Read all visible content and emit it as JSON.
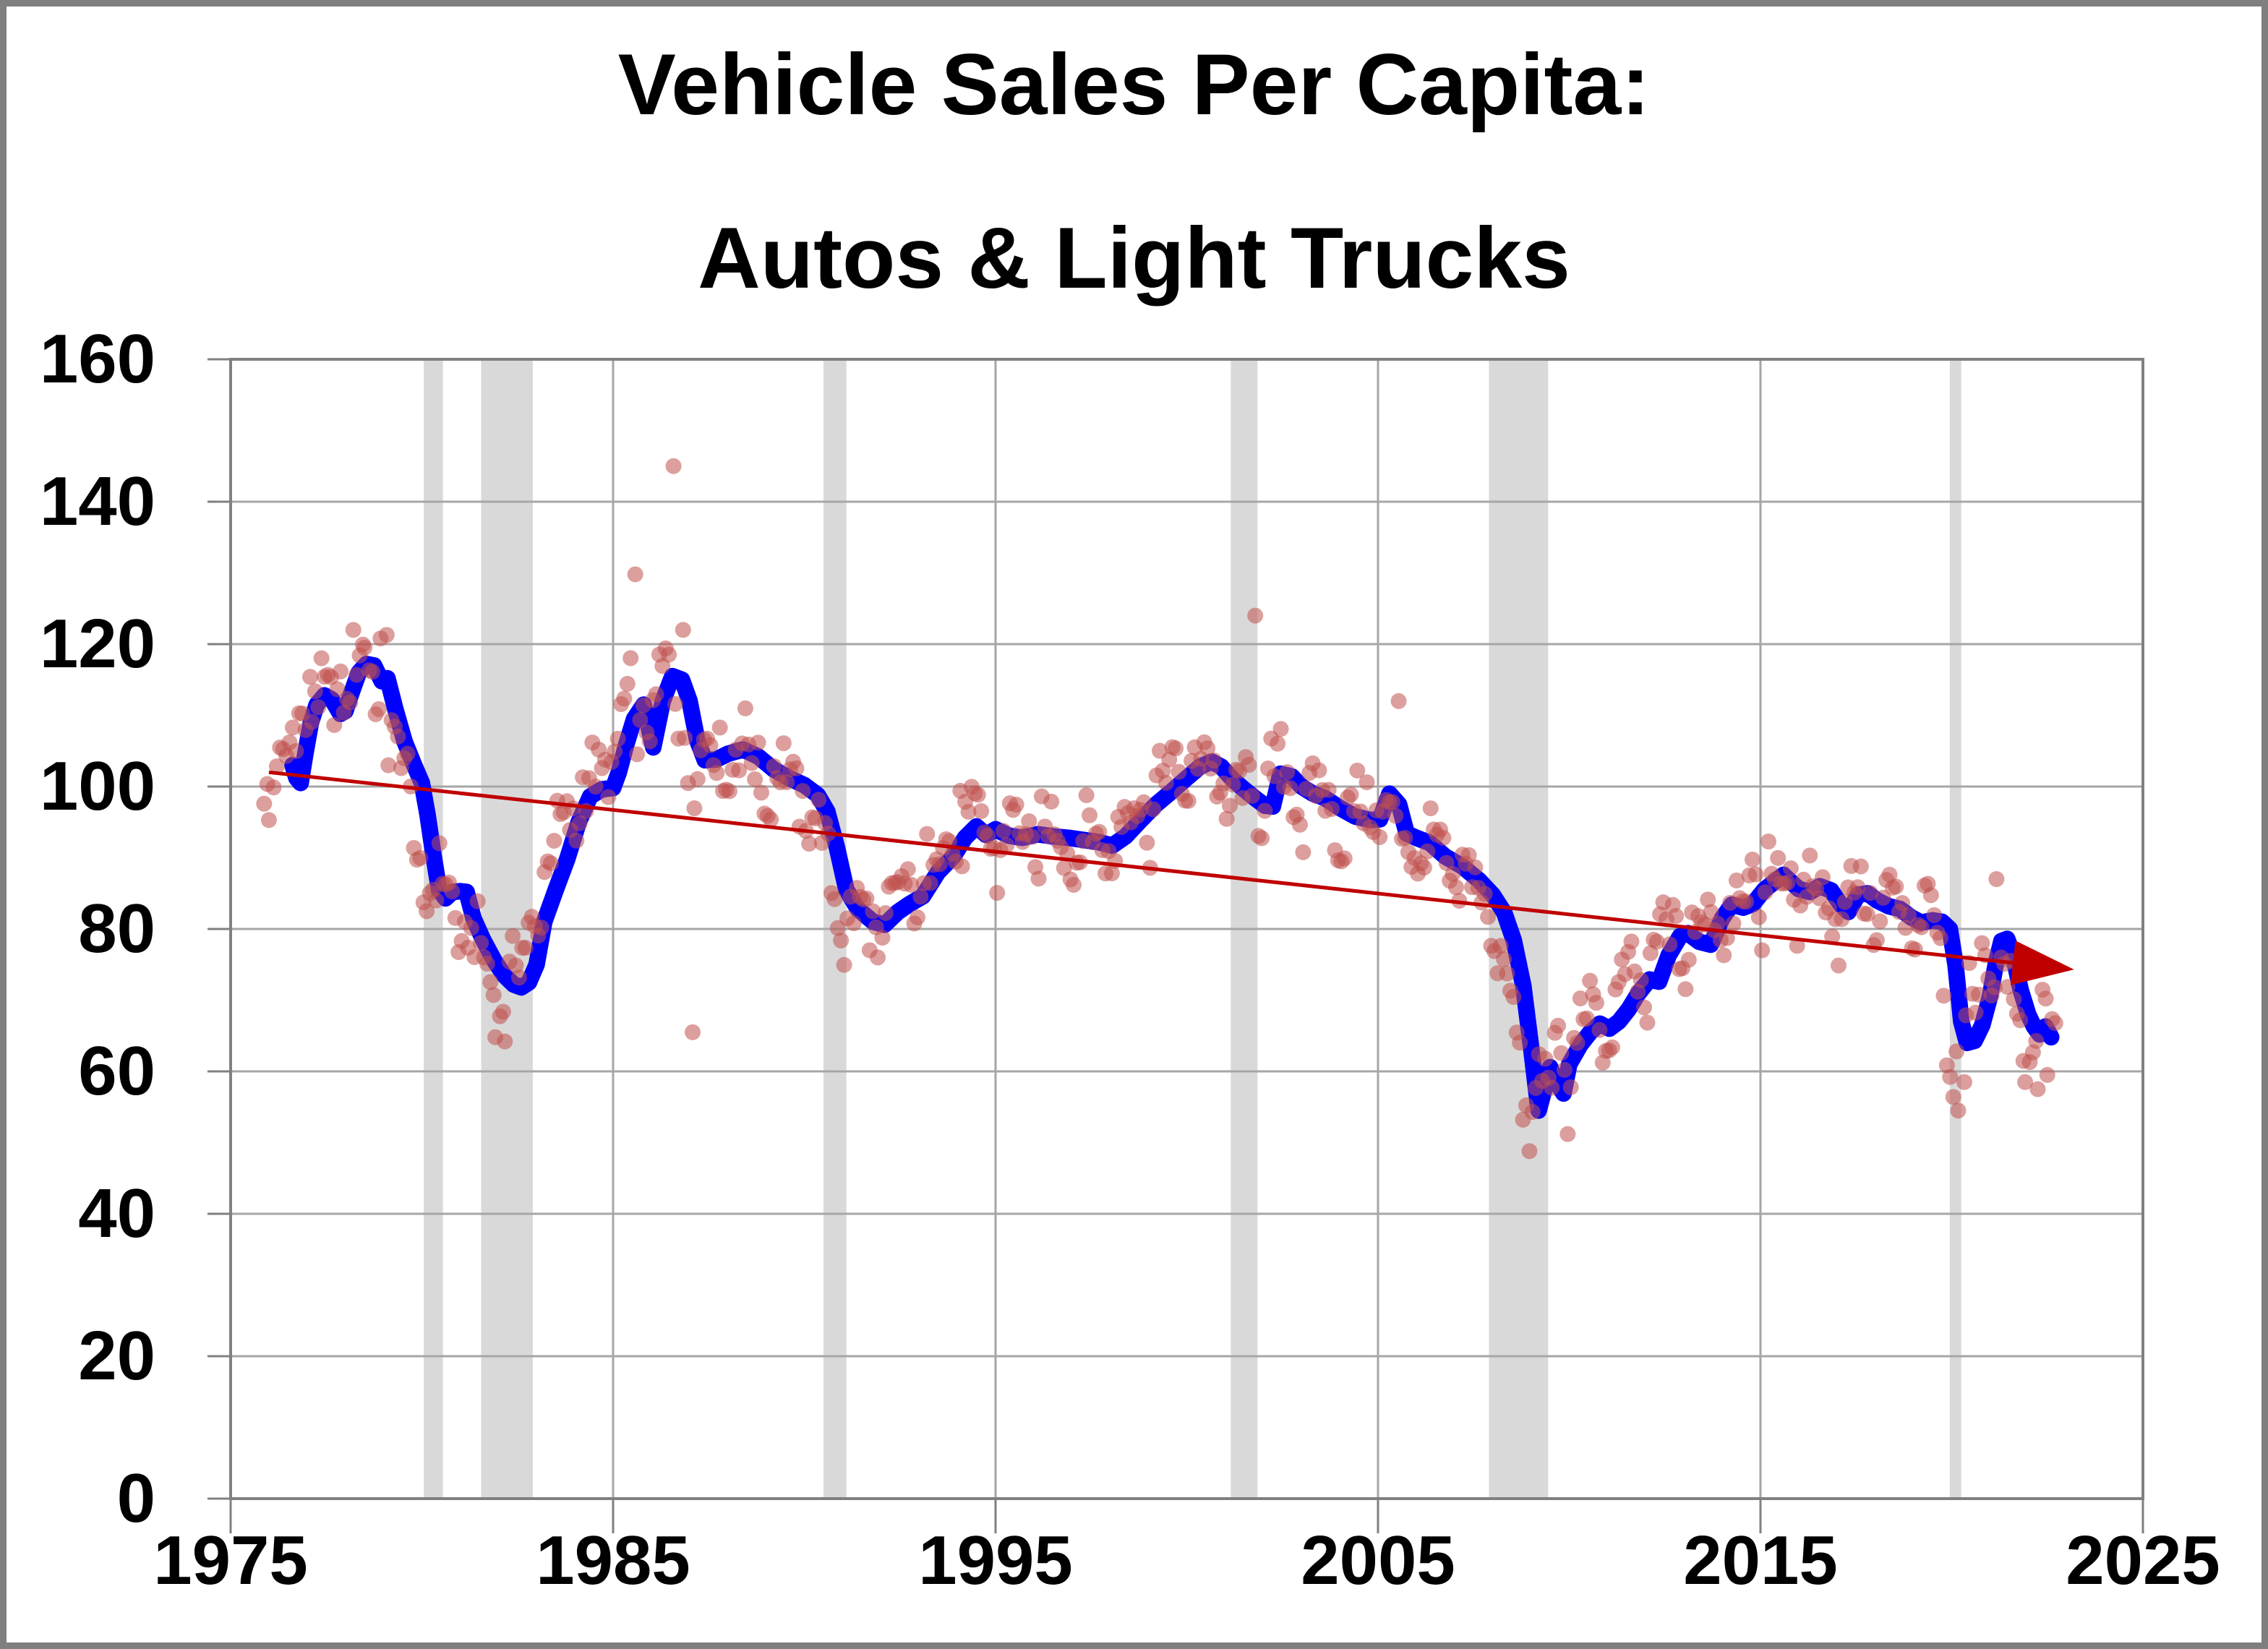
{
  "title": {
    "line1": "Vehicle Sales Per Capita:",
    "line2": "Autos & Light Trucks"
  },
  "chart_data": {
    "type": "scatter",
    "title": "Vehicle Sales Per Capita: Autos & Light Trucks",
    "xlabel": "",
    "ylabel": "",
    "grid": true,
    "legend": "none",
    "x_axis": {
      "min": 1975,
      "max": 2025,
      "tick_values": [
        1975,
        1985,
        1995,
        2005,
        2015,
        2025
      ],
      "tick_labels": [
        "1975",
        "1985",
        "1995",
        "2005",
        "2015",
        "2025"
      ]
    },
    "y_axis": {
      "min": 0,
      "max": 160,
      "tick_interval": 20,
      "tick_values": [
        0,
        20,
        40,
        60,
        80,
        100,
        120,
        140,
        160
      ],
      "tick_labels": [
        "0",
        "20",
        "40",
        "60",
        "80",
        "100",
        "120",
        "140",
        "160"
      ]
    },
    "colors": {
      "smoothed_line": "#0000ff",
      "monthly_scatter": "#c0504d",
      "trend_line": "#c00000",
      "recession_band": "#d9d9d9",
      "gridline": "#a6a6a6",
      "frame": "#808080",
      "text": "#000000",
      "page_border": "#7f7f7f"
    },
    "recession_bands": [
      [
        1980.05,
        1980.55
      ],
      [
        1981.55,
        1982.9
      ],
      [
        1990.5,
        1991.1
      ],
      [
        2001.15,
        2001.85
      ],
      [
        2007.9,
        2009.45
      ],
      [
        2019.95,
        2020.25
      ]
    ],
    "trend_line": {
      "start": [
        1976.0,
        102.0
      ],
      "end": [
        2023.2,
        74.3
      ],
      "arrow_at_end": true
    },
    "smoothed_line": {
      "points": [
        [
          1976.62,
          103
        ],
        [
          1976.72,
          101.2
        ],
        [
          1976.83,
          100.5
        ],
        [
          1976.95,
          104.5
        ],
        [
          1977.1,
          109
        ],
        [
          1977.25,
          111.5
        ],
        [
          1977.45,
          112.8
        ],
        [
          1977.65,
          112.2
        ],
        [
          1977.87,
          110.2
        ],
        [
          1978.0,
          110.6
        ],
        [
          1978.15,
          113
        ],
        [
          1978.35,
          116
        ],
        [
          1978.55,
          117.2
        ],
        [
          1978.75,
          117
        ],
        [
          1978.95,
          114.8
        ],
        [
          1979.1,
          115.2
        ],
        [
          1979.3,
          111
        ],
        [
          1979.55,
          106.3
        ],
        [
          1979.8,
          103
        ],
        [
          1980.0,
          100.5
        ],
        [
          1980.15,
          96
        ],
        [
          1980.3,
          90.5
        ],
        [
          1980.45,
          85.5
        ],
        [
          1980.62,
          84.3
        ],
        [
          1980.8,
          85.2
        ],
        [
          1981.0,
          85.3
        ],
        [
          1981.17,
          85.2
        ],
        [
          1981.35,
          81.5
        ],
        [
          1981.6,
          78.5
        ],
        [
          1981.9,
          75.5
        ],
        [
          1982.15,
          73.5
        ],
        [
          1982.4,
          72.2
        ],
        [
          1982.6,
          71.8
        ],
        [
          1982.8,
          72.5
        ],
        [
          1983.0,
          75
        ],
        [
          1983.2,
          81
        ],
        [
          1983.5,
          85.5
        ],
        [
          1983.8,
          89.8
        ],
        [
          1984.1,
          95
        ],
        [
          1984.4,
          98.6
        ],
        [
          1984.7,
          99.6
        ],
        [
          1985.0,
          99.8
        ],
        [
          1985.15,
          102
        ],
        [
          1985.35,
          106
        ],
        [
          1985.55,
          109.5
        ],
        [
          1985.8,
          111.5
        ],
        [
          1986.05,
          105.5
        ],
        [
          1986.3,
          112
        ],
        [
          1986.55,
          115.5
        ],
        [
          1986.8,
          115
        ],
        [
          1987.0,
          112
        ],
        [
          1987.2,
          106.5
        ],
        [
          1987.4,
          103.7
        ],
        [
          1987.7,
          103.8
        ],
        [
          1988.0,
          104.6
        ],
        [
          1988.4,
          105.2
        ],
        [
          1988.8,
          104.2
        ],
        [
          1989.2,
          102.4
        ],
        [
          1989.6,
          101.2
        ],
        [
          1990.0,
          100.2
        ],
        [
          1990.35,
          98.8
        ],
        [
          1990.6,
          96.5
        ],
        [
          1990.85,
          91.5
        ],
        [
          1991.1,
          85.5
        ],
        [
          1991.4,
          82.8
        ],
        [
          1991.8,
          81
        ],
        [
          1992.1,
          80.6
        ],
        [
          1992.45,
          82.4
        ],
        [
          1992.75,
          83.5
        ],
        [
          1993.1,
          84.6
        ],
        [
          1993.5,
          88
        ],
        [
          1993.9,
          90.2
        ],
        [
          1994.2,
          92.8
        ],
        [
          1994.5,
          94.4
        ],
        [
          1994.75,
          93.2
        ],
        [
          1995.0,
          94
        ],
        [
          1995.35,
          93.1
        ],
        [
          1995.7,
          92.8
        ],
        [
          1996.1,
          93.3
        ],
        [
          1996.5,
          93
        ],
        [
          1996.9,
          92.8
        ],
        [
          1997.3,
          92.5
        ],
        [
          1997.7,
          92.2
        ],
        [
          1998.05,
          91.7
        ],
        [
          1998.4,
          93
        ],
        [
          1998.8,
          95.3
        ],
        [
          1999.2,
          97.5
        ],
        [
          1999.6,
          99.3
        ],
        [
          2000.0,
          101.2
        ],
        [
          2000.35,
          102.8
        ],
        [
          2000.65,
          103.5
        ],
        [
          2000.9,
          102.8
        ],
        [
          2001.2,
          101
        ],
        [
          2001.5,
          99.6
        ],
        [
          2001.8,
          98.3
        ],
        [
          2002.05,
          97.3
        ],
        [
          2002.25,
          97.2
        ],
        [
          2002.45,
          101.8
        ],
        [
          2002.75,
          101.4
        ],
        [
          2003.0,
          100
        ],
        [
          2003.3,
          99
        ],
        [
          2003.6,
          98.4
        ],
        [
          2004.0,
          97
        ],
        [
          2004.4,
          95.8
        ],
        [
          2004.8,
          95.3
        ],
        [
          2005.05,
          95.4
        ],
        [
          2005.3,
          99
        ],
        [
          2005.55,
          97.5
        ],
        [
          2005.75,
          93.4
        ],
        [
          2006.0,
          92.8
        ],
        [
          2006.35,
          92.1
        ],
        [
          2006.75,
          90.2
        ],
        [
          2007.2,
          88.8
        ],
        [
          2007.65,
          86.8
        ],
        [
          2008.0,
          84.8
        ],
        [
          2008.3,
          82.3
        ],
        [
          2008.55,
          78.4
        ],
        [
          2008.8,
          72
        ],
        [
          2009.0,
          63.5
        ],
        [
          2009.2,
          54.5
        ],
        [
          2009.35,
          57.5
        ],
        [
          2009.5,
          60.6
        ],
        [
          2009.67,
          58.4
        ],
        [
          2009.85,
          56.9
        ],
        [
          2010.0,
          61
        ],
        [
          2010.3,
          63.8
        ],
        [
          2010.55,
          65.5
        ],
        [
          2010.8,
          66.7
        ],
        [
          2011.05,
          66
        ],
        [
          2011.3,
          67
        ],
        [
          2011.55,
          68.7
        ],
        [
          2011.8,
          70.9
        ],
        [
          2012.1,
          72.9
        ],
        [
          2012.35,
          72.6
        ],
        [
          2012.6,
          76.3
        ],
        [
          2012.9,
          79
        ],
        [
          2013.1,
          79.4
        ],
        [
          2013.4,
          78.2
        ],
        [
          2013.7,
          77.8
        ],
        [
          2014.0,
          81.5
        ],
        [
          2014.25,
          83.4
        ],
        [
          2014.55,
          83
        ],
        [
          2014.8,
          83.5
        ],
        [
          2015.1,
          85.5
        ],
        [
          2015.6,
          87.6
        ],
        [
          2016.0,
          85.6
        ],
        [
          2016.3,
          85.2
        ],
        [
          2016.55,
          86
        ],
        [
          2016.85,
          85.4
        ],
        [
          2017.1,
          83.4
        ],
        [
          2017.3,
          82.4
        ],
        [
          2017.55,
          84.8
        ],
        [
          2017.8,
          85
        ],
        [
          2018.05,
          84
        ],
        [
          2018.35,
          83.2
        ],
        [
          2018.65,
          82.8
        ],
        [
          2018.95,
          81.6
        ],
        [
          2019.2,
          80.9
        ],
        [
          2019.5,
          81.2
        ],
        [
          2019.75,
          81
        ],
        [
          2019.95,
          80
        ],
        [
          2020.1,
          75
        ],
        [
          2020.25,
          67
        ],
        [
          2020.4,
          64
        ],
        [
          2020.6,
          64.3
        ],
        [
          2020.8,
          66.5
        ],
        [
          2021.0,
          70.5
        ],
        [
          2021.15,
          75
        ],
        [
          2021.3,
          78.3
        ],
        [
          2021.45,
          78.6
        ],
        [
          2021.6,
          76.5
        ],
        [
          2021.8,
          71.5
        ],
        [
          2022.0,
          68
        ],
        [
          2022.15,
          66.3
        ],
        [
          2022.3,
          65.2
        ],
        [
          2022.45,
          66.3
        ],
        [
          2022.6,
          64.8
        ]
      ]
    },
    "monthly_scatter": {
      "start": 1975.875,
      "months": 563,
      "lag_years": 0.38,
      "pre_points": [
        [
          1975.4,
          100.3
        ],
        [
          1976.0,
          101.2
        ]
      ],
      "seasonal_jan_to_dec": [
        -6,
        -2.5,
        1.5,
        1,
        2.5,
        3.5,
        2.5,
        2,
        0.5,
        -0.5,
        -2,
        -3.5
      ],
      "jitter_amp": 3.2,
      "outliers": [
        [
          1976.0,
          95.3
        ],
        [
          1977.08,
          115.4
        ],
        [
          1978.5,
          119.5
        ],
        [
          1978.92,
          120.8
        ],
        [
          1979.08,
          121.3
        ],
        [
          1981.92,
          64.8
        ],
        [
          1982.17,
          64.2
        ],
        [
          1985.58,
          129.8
        ],
        [
          1986.58,
          145
        ],
        [
          1986.83,
          122
        ],
        [
          1987.08,
          65.5
        ],
        [
          1991.92,
          76
        ],
        [
          1994.08,
          99.4
        ],
        [
          2001.79,
          124
        ],
        [
          2005.54,
          112
        ],
        [
          2008.96,
          48.8
        ],
        [
          2009.96,
          51.2
        ],
        [
          2020.17,
          54.5
        ],
        [
          2020.25,
          42
        ],
        [
          2020.33,
          58.5
        ],
        [
          2021.17,
          87
        ],
        [
          2021.92,
          58.5
        ],
        [
          2022.25,
          57.5
        ],
        [
          2022.5,
          59.5
        ]
      ]
    }
  }
}
